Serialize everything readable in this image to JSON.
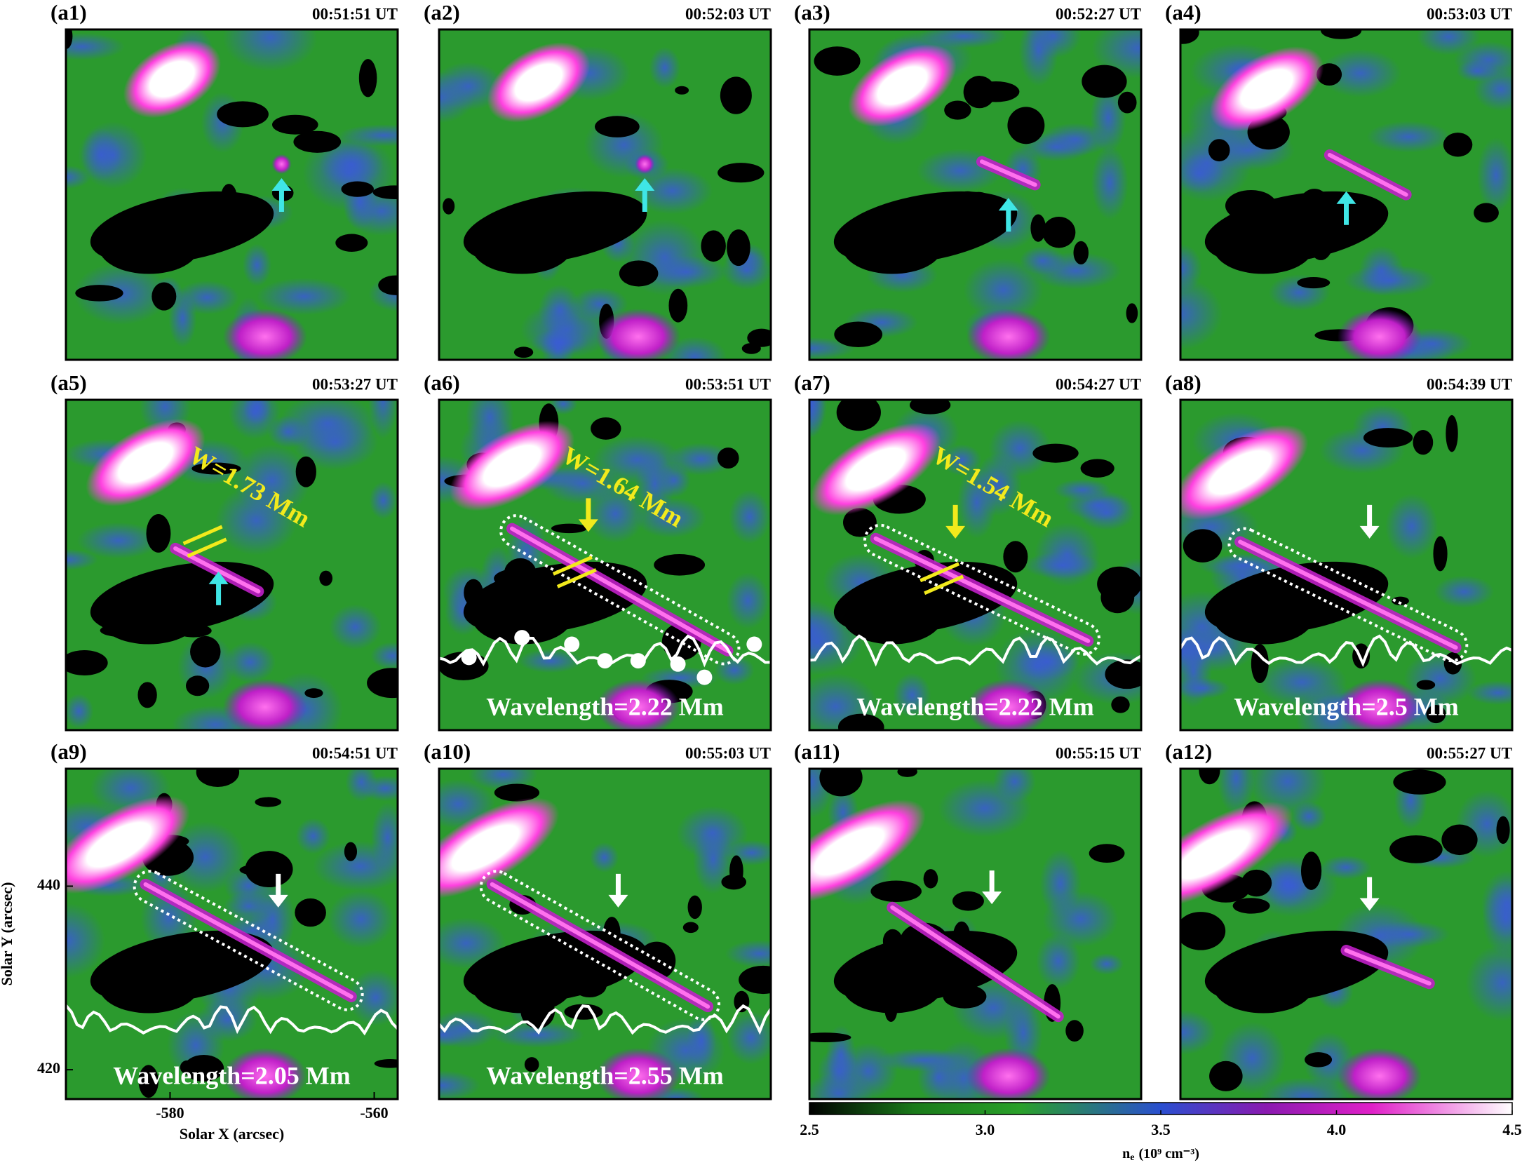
{
  "panels": [
    {
      "label": "(a1)",
      "time": "00:51:51 UT",
      "arrow_color": "#3fe6e6"
    },
    {
      "label": "(a2)",
      "time": "00:52:03 UT",
      "arrow_color": "#3fe6e6"
    },
    {
      "label": "(a3)",
      "time": "00:52:27 UT",
      "arrow_color": "#3fe6e6"
    },
    {
      "label": "(a4)",
      "time": "00:53:03 UT",
      "arrow_color": "#3fe6e6"
    },
    {
      "label": "(a5)",
      "time": "00:53:27 UT",
      "arrow_color": "#3fe6e6",
      "width_label": "W=1.73 Mm"
    },
    {
      "label": "(a6)",
      "time": "00:53:51 UT",
      "arrow_color": "#f2ea1c",
      "width_label": "W=1.64 Mm",
      "wavelength": "Wavelength=2.22 Mm"
    },
    {
      "label": "(a7)",
      "time": "00:54:27 UT",
      "arrow_color": "#f2ea1c",
      "width_label": "W=1.54 Mm",
      "wavelength": "Wavelength=2.22 Mm"
    },
    {
      "label": "(a8)",
      "time": "00:54:39 UT",
      "arrow_color": "#ffffff",
      "wavelength": "Wavelength=2.5 Mm"
    },
    {
      "label": "(a9)",
      "time": "00:54:51 UT",
      "arrow_color": "#ffffff",
      "wavelength": "Wavelength=2.05 Mm"
    },
    {
      "label": "(a10)",
      "time": "00:55:03 UT",
      "arrow_color": "#ffffff",
      "wavelength": "Wavelength=2.55 Mm"
    },
    {
      "label": "(a11)",
      "time": "00:55:15 UT",
      "arrow_color": "#ffffff"
    },
    {
      "label": "(a12)",
      "time": "00:55:27 UT",
      "arrow_color": "#ffffff"
    }
  ],
  "axes": {
    "x_label": "Solar X (arcsec)",
    "y_label": "Solar Y (arcsec)",
    "xlim": [
      -590.2,
      -557.7
    ],
    "xticks": [
      -580,
      -560
    ],
    "ylim": [
      416.8,
      452.8
    ],
    "yticks": [
      420,
      440
    ]
  },
  "colorbar": {
    "symbol": "n",
    "subscript": "e",
    "unit": "(10⁹ cm⁻³)",
    "lim": [
      2.5,
      4.5
    ],
    "ticks": [
      {
        "value": 2.5,
        "label": "2.5"
      },
      {
        "value": 3.0,
        "label": "3.0"
      },
      {
        "value": 3.5,
        "label": "3.5"
      },
      {
        "value": 4.0,
        "label": "4.0"
      },
      {
        "value": 4.5,
        "label": "4.5"
      }
    ]
  }
}
